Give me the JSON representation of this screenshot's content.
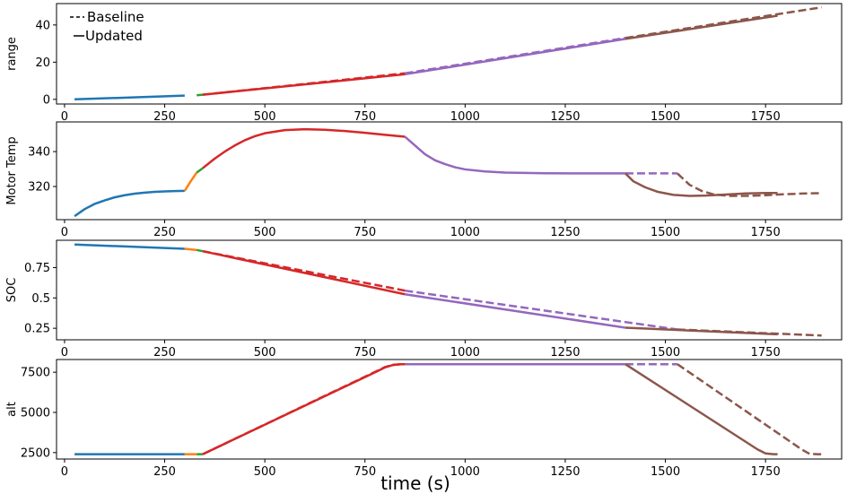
{
  "figure": {
    "xlabel": "time (s)"
  },
  "legend": {
    "entries": [
      {
        "label": "Baseline",
        "style": "dashed"
      },
      {
        "label": "Updated",
        "style": "solid"
      }
    ]
  },
  "colors": {
    "blue": "#1f77b4",
    "orange": "#ff7f0e",
    "green": "#2ca02c",
    "red": "#d62728",
    "purple": "#9467bd",
    "brown": "#8c564b"
  },
  "chart_data": [
    {
      "type": "line",
      "ylabel": "range",
      "xlim": [
        -20,
        1940
      ],
      "ylim": [
        -2.5,
        51.5
      ],
      "xticks": [
        0,
        250,
        500,
        750,
        1000,
        1250,
        1500,
        1750
      ],
      "yticks": [
        0,
        20,
        40
      ],
      "series": [
        {
          "color": "blue",
          "style": "solid",
          "x": [
            25,
            300
          ],
          "y": [
            0,
            2
          ]
        },
        {
          "color": "green",
          "style": "solid",
          "x": [
            330,
            345
          ],
          "y": [
            2.2,
            2.5
          ]
        },
        {
          "color": "red",
          "style": "solid",
          "x": [
            345,
            850
          ],
          "y": [
            2.5,
            13.5
          ]
        },
        {
          "color": "red",
          "style": "dashed",
          "x": [
            345,
            850
          ],
          "y": [
            2.5,
            14
          ]
        },
        {
          "color": "purple",
          "style": "solid",
          "x": [
            850,
            1400
          ],
          "y": [
            13.5,
            32.5
          ]
        },
        {
          "color": "purple",
          "style": "dashed",
          "x": [
            850,
            1400
          ],
          "y": [
            14,
            33
          ]
        },
        {
          "color": "brown",
          "style": "solid",
          "x": [
            1400,
            1780
          ],
          "y": [
            32.5,
            45
          ]
        },
        {
          "color": "brown",
          "style": "dashed",
          "x": [
            1400,
            1890
          ],
          "y": [
            33,
            49.5
          ]
        }
      ]
    },
    {
      "type": "line",
      "ylabel": "Motor Temp",
      "xlim": [
        -20,
        1940
      ],
      "ylim": [
        301,
        357
      ],
      "xticks": [
        0,
        250,
        500,
        750,
        1000,
        1250,
        1500,
        1750
      ],
      "yticks": [
        320,
        340
      ],
      "series": [
        {
          "color": "blue",
          "style": "solid",
          "x": [
            25,
            50,
            75,
            100,
            125,
            150,
            175,
            200,
            225,
            250,
            275,
            300
          ],
          "y": [
            303,
            307,
            310,
            312,
            313.8,
            315,
            315.9,
            316.5,
            316.9,
            317.2,
            317.4,
            317.5
          ]
        },
        {
          "color": "orange",
          "style": "solid",
          "x": [
            300,
            315,
            330
          ],
          "y": [
            317.5,
            323,
            328
          ]
        },
        {
          "color": "green",
          "style": "solid",
          "x": [
            330,
            345
          ],
          "y": [
            328,
            330.5
          ]
        },
        {
          "color": "red",
          "style": "solid",
          "x": [
            345,
            375,
            400,
            425,
            450,
            475,
            500,
            550,
            600,
            650,
            700,
            750,
            800,
            850
          ],
          "y": [
            330.5,
            336,
            340,
            343.5,
            346.5,
            348.8,
            350.5,
            352.3,
            352.8,
            352.5,
            351.8,
            350.8,
            349.6,
            348.5
          ]
        },
        {
          "color": "purple",
          "style": "solid",
          "x": [
            850,
            875,
            900,
            925,
            950,
            975,
            1000,
            1050,
            1100,
            1150,
            1200,
            1300,
            1400
          ],
          "y": [
            348.5,
            343.5,
            338.5,
            335,
            332.8,
            331,
            329.8,
            328.6,
            328,
            327.8,
            327.6,
            327.5,
            327.5
          ]
        },
        {
          "color": "purple",
          "style": "dashed",
          "x": [
            1400,
            1530
          ],
          "y": [
            327.5,
            327.5
          ]
        },
        {
          "color": "brown",
          "style": "solid",
          "x": [
            1400,
            1420,
            1450,
            1480,
            1520,
            1560,
            1600,
            1650,
            1700,
            1750,
            1780
          ],
          "y": [
            327.5,
            323,
            319.5,
            317,
            315.2,
            314.6,
            314.8,
            315.4,
            316,
            316.3,
            316.3
          ]
        },
        {
          "color": "brown",
          "style": "dashed",
          "x": [
            1530,
            1560,
            1590,
            1620,
            1660,
            1700,
            1750,
            1800,
            1850,
            1890
          ],
          "y": [
            327.5,
            321,
            317.5,
            315.5,
            314.6,
            314.6,
            315,
            315.6,
            316,
            316.2
          ]
        }
      ]
    },
    {
      "type": "line",
      "ylabel": "SOC",
      "xlim": [
        -20,
        1940
      ],
      "ylim": [
        0.155,
        0.975
      ],
      "xticks": [
        0,
        250,
        500,
        750,
        1000,
        1250,
        1500,
        1750
      ],
      "yticks": [
        0.25,
        0.5,
        0.75
      ],
      "series": [
        {
          "color": "blue",
          "style": "solid",
          "x": [
            25,
            300
          ],
          "y": [
            0.94,
            0.905
          ]
        },
        {
          "color": "orange",
          "style": "solid",
          "x": [
            300,
            330
          ],
          "y": [
            0.905,
            0.895
          ]
        },
        {
          "color": "green",
          "style": "solid",
          "x": [
            330,
            345
          ],
          "y": [
            0.895,
            0.885
          ]
        },
        {
          "color": "red",
          "style": "solid",
          "x": [
            345,
            850
          ],
          "y": [
            0.885,
            0.53
          ]
        },
        {
          "color": "red",
          "style": "dashed",
          "x": [
            345,
            850
          ],
          "y": [
            0.885,
            0.56
          ]
        },
        {
          "color": "purple",
          "style": "solid",
          "x": [
            850,
            1400
          ],
          "y": [
            0.53,
            0.255
          ]
        },
        {
          "color": "purple",
          "style": "dashed",
          "x": [
            850,
            1530
          ],
          "y": [
            0.56,
            0.24
          ]
        },
        {
          "color": "brown",
          "style": "solid",
          "x": [
            1400,
            1780
          ],
          "y": [
            0.255,
            0.2
          ]
        },
        {
          "color": "brown",
          "style": "dashed",
          "x": [
            1530,
            1890
          ],
          "y": [
            0.24,
            0.19
          ]
        }
      ]
    },
    {
      "type": "line",
      "ylabel": "alt",
      "xlim": [
        -20,
        1940
      ],
      "ylim": [
        2100,
        8290
      ],
      "xticks": [
        0,
        250,
        500,
        750,
        1000,
        1250,
        1500,
        1750
      ],
      "yticks": [
        2500,
        5000,
        7500
      ],
      "series": [
        {
          "color": "blue",
          "style": "solid",
          "x": [
            25,
            300
          ],
          "y": [
            2400,
            2400
          ]
        },
        {
          "color": "orange",
          "style": "solid",
          "x": [
            300,
            330
          ],
          "y": [
            2400,
            2400
          ]
        },
        {
          "color": "green",
          "style": "solid",
          "x": [
            330,
            345
          ],
          "y": [
            2400,
            2400
          ]
        },
        {
          "color": "red",
          "style": "solid",
          "x": [
            345,
            780,
            800,
            820,
            840,
            850
          ],
          "y": [
            2400,
            7550,
            7800,
            7950,
            8000,
            8000
          ]
        },
        {
          "color": "red",
          "style": "dashed",
          "x": [
            345,
            780,
            800,
            820,
            840,
            850
          ],
          "y": [
            2400,
            7580,
            7820,
            7960,
            8000,
            8000
          ]
        },
        {
          "color": "purple",
          "style": "solid",
          "x": [
            850,
            1400
          ],
          "y": [
            8000,
            8000
          ]
        },
        {
          "color": "purple",
          "style": "dashed",
          "x": [
            1400,
            1530
          ],
          "y": [
            8000,
            8000
          ]
        },
        {
          "color": "brown",
          "style": "solid",
          "x": [
            1400,
            1730,
            1750,
            1770,
            1780
          ],
          "y": [
            8000,
            2700,
            2450,
            2400,
            2400
          ]
        },
        {
          "color": "brown",
          "style": "dashed",
          "x": [
            1530,
            1840,
            1860,
            1880,
            1890
          ],
          "y": [
            8000,
            2700,
            2420,
            2400,
            2400
          ]
        }
      ]
    }
  ]
}
